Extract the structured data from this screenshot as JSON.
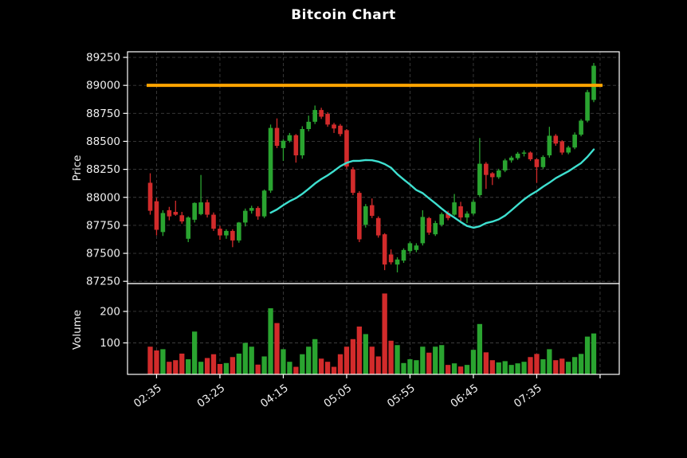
{
  "title": "Bitcoin Chart",
  "price_axis": {
    "label": "Price",
    "ticks": [
      89250,
      89000,
      88750,
      88500,
      88250,
      88000,
      87750,
      87500,
      87250
    ]
  },
  "volume_axis": {
    "label": "Volume",
    "ticks": [
      200,
      100
    ]
  },
  "x_axis": {
    "tick_labels": [
      "02:35",
      "03:25",
      "04:15",
      "05:05",
      "05:55",
      "06:45",
      "07:35"
    ],
    "tick_indices": [
      1,
      11,
      21,
      31,
      41,
      51,
      61
    ],
    "unlabeled_tick_indices": [
      71
    ]
  },
  "colors": {
    "background": "#000000",
    "up": "#2aa430",
    "down": "#d22b2b",
    "moving_average": "#3ee0d0",
    "resistance_line": "#ffa500",
    "grid": "#3d3d3d",
    "axis": "#ffffff",
    "text": "#f0f0f0"
  },
  "chart_data": {
    "type": "candlestick",
    "title": "Bitcoin Chart",
    "ylabel_top": "Price",
    "ylabel_bottom": "Volume",
    "price_range": [
      87230,
      89300
    ],
    "volume_range": [
      0,
      286
    ],
    "grid": true,
    "resistance_line": {
      "value": 89000
    },
    "moving_average": {
      "kind": "SMA",
      "period": 20
    },
    "times": [
      "02:30",
      "02:35",
      "02:40",
      "02:45",
      "02:50",
      "02:55",
      "03:00",
      "03:05",
      "03:10",
      "03:15",
      "03:20",
      "03:25",
      "03:30",
      "03:35",
      "03:40",
      "03:45",
      "03:50",
      "03:55",
      "04:00",
      "04:05",
      "04:10",
      "04:15",
      "04:20",
      "04:25",
      "04:30",
      "04:35",
      "04:40",
      "04:45",
      "04:50",
      "04:55",
      "05:00",
      "05:05",
      "05:10",
      "05:15",
      "05:20",
      "05:25",
      "05:30",
      "05:35",
      "05:40",
      "05:45",
      "05:50",
      "05:55",
      "06:00",
      "06:05",
      "06:10",
      "06:15",
      "06:20",
      "06:25",
      "06:30",
      "06:35",
      "06:40",
      "06:45",
      "06:50",
      "06:55",
      "07:00",
      "07:05",
      "07:10",
      "07:15",
      "07:20",
      "07:25",
      "07:30",
      "07:35",
      "07:40",
      "07:45",
      "07:50",
      "07:55",
      "08:00",
      "08:05",
      "08:10",
      "08:15",
      "08:20"
    ],
    "ohlc": [
      [
        88130,
        88215,
        87845,
        87880
      ],
      [
        87965,
        87995,
        87660,
        87710
      ],
      [
        87690,
        87885,
        87655,
        87860
      ],
      [
        87885,
        87915,
        87795,
        87830
      ],
      [
        87870,
        87970,
        87835,
        87845
      ],
      [
        87840,
        87870,
        87765,
        87785
      ],
      [
        87630,
        87830,
        87600,
        87820
      ],
      [
        87800,
        87955,
        87775,
        87950
      ],
      [
        87850,
        88200,
        87840,
        87955
      ],
      [
        87955,
        87980,
        87820,
        87845
      ],
      [
        87845,
        87865,
        87700,
        87720
      ],
      [
        87720,
        87745,
        87620,
        87660
      ],
      [
        87660,
        87715,
        87630,
        87700
      ],
      [
        87700,
        87715,
        87555,
        87615
      ],
      [
        87615,
        87780,
        87595,
        87775
      ],
      [
        87775,
        87900,
        87740,
        87880
      ],
      [
        87880,
        87925,
        87855,
        87905
      ],
      [
        87905,
        87920,
        87800,
        87830
      ],
      [
        87830,
        88070,
        87815,
        88060
      ],
      [
        88060,
        88650,
        88040,
        88620
      ],
      [
        88620,
        88705,
        88440,
        88460
      ],
      [
        88440,
        88520,
        88325,
        88505
      ],
      [
        88505,
        88575,
        88490,
        88555
      ],
      [
        88555,
        88565,
        88310,
        88375
      ],
      [
        88375,
        88635,
        88345,
        88610
      ],
      [
        88610,
        88730,
        88590,
        88675
      ],
      [
        88675,
        88820,
        88655,
        88780
      ],
      [
        88780,
        88800,
        88700,
        88720
      ],
      [
        88745,
        88760,
        88630,
        88650
      ],
      [
        88650,
        88665,
        88575,
        88615
      ],
      [
        88640,
        88655,
        88545,
        88565
      ],
      [
        88600,
        88610,
        88255,
        88275
      ],
      [
        88250,
        88270,
        88020,
        88040
      ],
      [
        88040,
        88055,
        87600,
        87625
      ],
      [
        87755,
        87940,
        87730,
        87920
      ],
      [
        87930,
        87990,
        87815,
        87835
      ],
      [
        87815,
        87830,
        87640,
        87660
      ],
      [
        87670,
        87680,
        87350,
        87400
      ],
      [
        87490,
        87535,
        87400,
        87420
      ],
      [
        87400,
        87465,
        87330,
        87445
      ],
      [
        87435,
        87545,
        87415,
        87530
      ],
      [
        87520,
        87605,
        87500,
        87590
      ],
      [
        87530,
        87590,
        87510,
        87570
      ],
      [
        87590,
        87885,
        87570,
        87825
      ],
      [
        87815,
        87825,
        87665,
        87685
      ],
      [
        87670,
        87790,
        87655,
        87770
      ],
      [
        87755,
        87865,
        87740,
        87850
      ],
      [
        87860,
        87880,
        87795,
        87815
      ],
      [
        87845,
        88030,
        87835,
        87955
      ],
      [
        87920,
        87960,
        87780,
        87820
      ],
      [
        87820,
        87875,
        87770,
        87855
      ],
      [
        87855,
        87980,
        87840,
        87960
      ],
      [
        88020,
        88530,
        88005,
        88300
      ],
      [
        88300,
        88315,
        88075,
        88200
      ],
      [
        88215,
        88225,
        88110,
        88180
      ],
      [
        88180,
        88255,
        88165,
        88240
      ],
      [
        88240,
        88345,
        88225,
        88330
      ],
      [
        88330,
        88370,
        88310,
        88355
      ],
      [
        88350,
        88405,
        88335,
        88390
      ],
      [
        88390,
        88420,
        88365,
        88400
      ],
      [
        88400,
        88410,
        88325,
        88340
      ],
      [
        88340,
        88350,
        88130,
        88270
      ],
      [
        88270,
        88375,
        88255,
        88360
      ],
      [
        88375,
        88630,
        88355,
        88550
      ],
      [
        88550,
        88565,
        88460,
        88480
      ],
      [
        88500,
        88510,
        88380,
        88400
      ],
      [
        88400,
        88460,
        88385,
        88445
      ],
      [
        88445,
        88580,
        88430,
        88560
      ],
      [
        88560,
        88700,
        88545,
        88685
      ],
      [
        88685,
        88960,
        88670,
        88940
      ],
      [
        88870,
        89200,
        88850,
        89175
      ]
    ],
    "volume": [
      88,
      76,
      80,
      40,
      45,
      66,
      48,
      136,
      40,
      52,
      64,
      33,
      36,
      55,
      66,
      100,
      88,
      31,
      57,
      210,
      163,
      80,
      40,
      24,
      64,
      88,
      112,
      50,
      40,
      24,
      64,
      88,
      112,
      152,
      128,
      88,
      57,
      257,
      107,
      93,
      36,
      48,
      45,
      88,
      69,
      88,
      93,
      30,
      35,
      25,
      30,
      78,
      160,
      70,
      45,
      38,
      42,
      30,
      35,
      40,
      55,
      65,
      48,
      80,
      45,
      50,
      40,
      55,
      65,
      120,
      130
    ]
  }
}
